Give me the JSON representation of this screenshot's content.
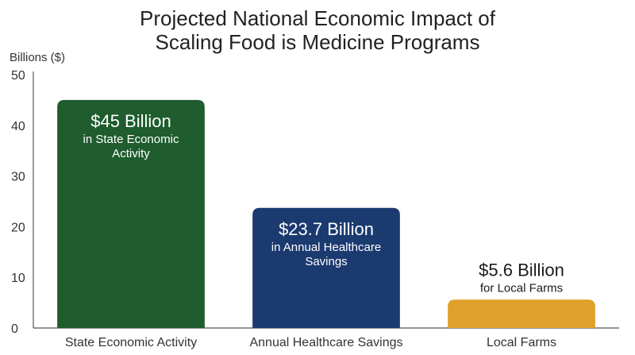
{
  "chart_data": {
    "type": "bar",
    "title_lines": [
      "Projected National Economic Impact of",
      "Scaling Food is Medicine Programs"
    ],
    "ylabel": "Billions ($)",
    "xlabel": "",
    "ylim": [
      0,
      50
    ],
    "yticks": [
      0,
      10,
      20,
      30,
      40,
      50
    ],
    "grid": false,
    "categories": [
      "State Economic Activity",
      "Annual Healthcare Savings",
      "Local Farms"
    ],
    "values": [
      45,
      23.7,
      5.6
    ],
    "colors": [
      "#1f5c2e",
      "#1b3a70",
      "#e0a12a"
    ],
    "label_colors": [
      "#ffffff",
      "#ffffff",
      "#1a1a1a"
    ],
    "bar_labels": [
      {
        "main": "$45 Billion",
        "sub": [
          "in State Economic",
          "Activity"
        ]
      },
      {
        "main": "$23.7 Billion",
        "sub": [
          "in Annual Healthcare",
          "Savings"
        ]
      },
      {
        "main": "$5.6 Billion",
        "sub": [
          "for Local Farms"
        ]
      }
    ],
    "label_position": [
      "inside",
      "inside",
      "above"
    ]
  }
}
